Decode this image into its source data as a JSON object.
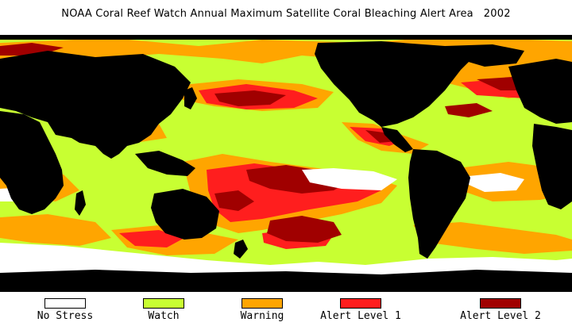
{
  "title": "NOAA Coral Reef Watch Annual Maximum Satellite Coral Bleaching Alert Area   2002",
  "colors": {
    "ocean_background": "#b4e61e",
    "land": "#000000",
    "no_stress": "#ffffff",
    "watch": "#c8ff32",
    "warning": "#ffa500",
    "alert_level_1": "#ff1e1e",
    "alert_level_2": "#a00000"
  },
  "legend": [
    {
      "key": "no_stress",
      "label": "No Stress",
      "color": "#ffffff"
    },
    {
      "key": "watch",
      "label": "Watch",
      "color": "#c8ff32"
    },
    {
      "key": "warning",
      "label": "Warning",
      "color": "#ffa500"
    },
    {
      "key": "alert_level_1",
      "label": "Alert Level 1",
      "color": "#ff1e1e"
    },
    {
      "key": "alert_level_2",
      "label": "Alert Level 2",
      "color": "#a00000"
    }
  ]
}
